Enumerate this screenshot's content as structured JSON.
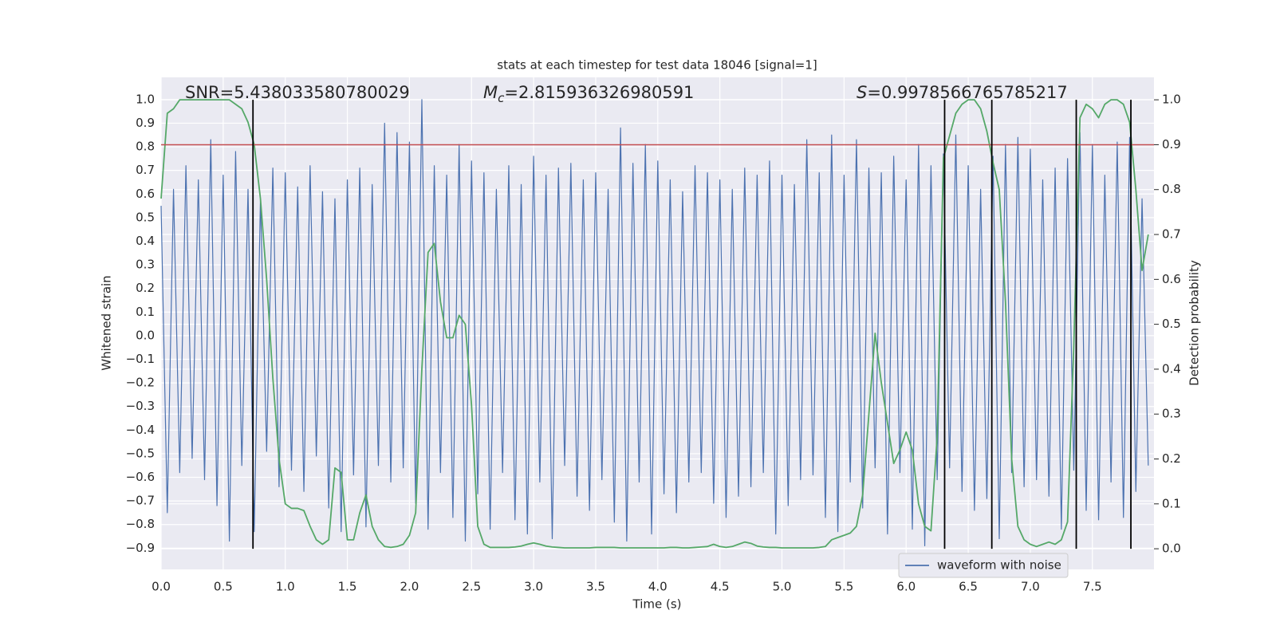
{
  "chart_data": {
    "type": "line",
    "title": "stats at each timestep for test data 18046 [signal=1]",
    "xlabel": "Time (s)",
    "ylabel": "Whitened strain",
    "y2label": "Detection probability",
    "annotations": [
      {
        "text": "SNR=5.438033580780029"
      },
      {
        "symbol": "M",
        "subscript": "c",
        "text": "=2.815936326980591"
      },
      {
        "symbol": "S",
        "text": "=0.9978566765785217"
      }
    ],
    "xlim": [
      0,
      7.996
    ],
    "xticks": [
      {
        "value": 0,
        "label": "0.0"
      },
      0.5,
      {
        "value": 1,
        "label": "1.0"
      },
      1.5,
      {
        "value": 2,
        "label": "2.0"
      },
      2.5,
      {
        "value": 3,
        "label": "3.0"
      },
      3.5,
      {
        "value": 4,
        "label": "4.0"
      },
      4.5,
      {
        "value": 5,
        "label": "5.0"
      },
      5.5,
      {
        "value": 6,
        "label": "6.0"
      },
      6.5,
      {
        "value": 7,
        "label": "7.0"
      },
      7.5
    ],
    "ylim": [
      -0.99,
      1.094
    ],
    "yticks": [
      {
        "value": -0.9,
        "label": "−0.9"
      },
      {
        "value": -0.8,
        "label": "−0.8"
      },
      {
        "value": -0.7,
        "label": "−0.7"
      },
      {
        "value": -0.6,
        "label": "−0.6"
      },
      {
        "value": -0.5,
        "label": "−0.5"
      },
      {
        "value": -0.4,
        "label": "−0.4"
      },
      {
        "value": -0.3,
        "label": "−0.3"
      },
      {
        "value": -0.2,
        "label": "−0.2"
      },
      {
        "value": -0.1,
        "label": "−0.1"
      },
      {
        "value": 0,
        "label": "0.0"
      },
      0.1,
      0.2,
      0.3,
      0.4,
      0.5,
      0.6,
      0.7,
      0.8,
      0.9,
      {
        "value": 1,
        "label": "1.0"
      }
    ],
    "y2lim": [
      -0.046,
      1.05
    ],
    "y2ticks": [
      {
        "value": 0,
        "label": "0.0"
      },
      0.1,
      0.2,
      0.3,
      0.4,
      0.5,
      0.6,
      0.7,
      0.8,
      0.9,
      {
        "value": 1,
        "label": "1.0"
      }
    ],
    "grid": true,
    "legend": "lower right",
    "x": [
      0,
      0.05,
      0.1,
      0.15,
      0.2,
      0.25,
      0.3,
      0.35,
      0.4,
      0.45,
      0.5,
      0.55,
      0.6,
      0.65,
      0.7,
      0.75,
      0.8,
      0.85,
      0.9,
      0.95,
      1,
      1.05,
      1.1,
      1.15,
      1.2,
      1.25,
      1.3,
      1.35,
      1.4,
      1.45,
      1.5,
      1.55,
      1.6,
      1.65,
      1.7,
      1.75,
      1.8,
      1.85,
      1.9,
      1.95,
      2,
      2.05,
      2.1,
      2.15,
      2.2,
      2.25,
      2.3,
      2.35,
      2.4,
      2.45,
      2.5,
      2.55,
      2.6,
      2.65,
      2.7,
      2.75,
      2.8,
      2.85,
      2.9,
      2.95,
      3,
      3.05,
      3.1,
      3.15,
      3.2,
      3.25,
      3.3,
      3.35,
      3.4,
      3.45,
      3.5,
      3.55,
      3.6,
      3.65,
      3.7,
      3.75,
      3.8,
      3.85,
      3.9,
      3.95,
      4,
      4.05,
      4.1,
      4.15,
      4.2,
      4.25,
      4.3,
      4.35,
      4.4,
      4.45,
      4.5,
      4.55,
      4.6,
      4.65,
      4.7,
      4.75,
      4.8,
      4.85,
      4.9,
      4.95,
      5,
      5.05,
      5.1,
      5.15,
      5.2,
      5.25,
      5.3,
      5.35,
      5.4,
      5.45,
      5.5,
      5.55,
      5.6,
      5.65,
      5.7,
      5.75,
      5.8,
      5.85,
      5.9,
      5.95,
      6,
      6.05,
      6.1,
      6.15,
      6.2,
      6.25,
      6.3,
      6.35,
      6.4,
      6.45,
      6.5,
      6.55,
      6.6,
      6.65,
      6.7,
      6.75,
      6.8,
      6.85,
      6.9,
      6.95,
      7,
      7.05,
      7.1,
      7.15,
      7.2,
      7.25,
      7.3,
      7.35,
      7.4,
      7.45,
      7.5,
      7.55,
      7.6,
      7.65,
      7.7,
      7.75,
      7.8,
      7.85,
      7.9,
      7.95
    ],
    "series": [
      {
        "name": "waveform with noise",
        "color": "#4c72b0",
        "values": [
          0.55,
          -0.75,
          0.62,
          -0.58,
          0.72,
          -0.52,
          0.66,
          -0.61,
          0.83,
          -0.72,
          0.68,
          -0.87,
          0.78,
          -0.55,
          0.62,
          -0.83,
          0.58,
          -0.49,
          0.71,
          -0.64,
          0.69,
          -0.57,
          0.63,
          -0.66,
          0.72,
          -0.51,
          0.61,
          -0.73,
          0.58,
          -0.83,
          0.66,
          -0.59,
          0.71,
          -0.81,
          0.64,
          -0.55,
          0.9,
          -0.62,
          0.86,
          -0.56,
          0.82,
          -0.71,
          1.0,
          -0.82,
          0.72,
          -0.58,
          0.68,
          -0.77,
          0.81,
          -0.87,
          0.74,
          -0.67,
          0.69,
          -0.82,
          0.62,
          -0.58,
          0.72,
          -0.78,
          0.64,
          -0.84,
          0.76,
          -0.62,
          0.68,
          -0.86,
          0.71,
          -0.55,
          0.73,
          -0.68,
          0.66,
          -0.74,
          0.69,
          -0.61,
          0.62,
          -0.79,
          0.88,
          -0.87,
          0.73,
          -0.62,
          0.81,
          -0.84,
          0.74,
          -0.67,
          0.66,
          -0.75,
          0.61,
          -0.62,
          0.72,
          -0.58,
          0.69,
          -0.71,
          0.66,
          -0.77,
          0.62,
          -0.68,
          0.71,
          -0.64,
          0.68,
          -0.58,
          0.74,
          -0.84,
          0.68,
          -0.72,
          0.64,
          -0.61,
          0.83,
          -0.59,
          0.69,
          -0.77,
          0.85,
          -0.83,
          0.68,
          -0.62,
          0.83,
          -0.73,
          0.71,
          -0.56,
          0.69,
          -0.84,
          0.76,
          -0.58,
          0.66,
          -0.82,
          0.81,
          -0.89,
          0.72,
          -0.61,
          0.77,
          -0.56,
          0.85,
          -0.66,
          0.72,
          -0.74,
          0.62,
          -0.69,
          0.76,
          -0.86,
          0.81,
          -0.58,
          0.84,
          -0.64,
          0.79,
          -0.61,
          0.66,
          -0.68,
          0.71,
          -0.82,
          0.75,
          -0.57,
          0.86,
          -0.74,
          0.81,
          -0.78,
          0.68,
          -0.62,
          0.82,
          -0.77,
          0.84,
          -0.66,
          0.58,
          -0.55
        ]
      },
      {
        "color": "#55a868",
        "axis": "y2",
        "values": [
          0.78,
          0.97,
          0.98,
          1.0,
          1.0,
          1.0,
          1.0,
          1.0,
          1.0,
          1.0,
          1.0,
          1.0,
          0.99,
          0.98,
          0.95,
          0.9,
          0.78,
          0.6,
          0.38,
          0.2,
          0.1,
          0.09,
          0.09,
          0.085,
          0.05,
          0.02,
          0.01,
          0.02,
          0.18,
          0.17,
          0.02,
          0.02,
          0.08,
          0.12,
          0.05,
          0.02,
          0.005,
          0.003,
          0.005,
          0.01,
          0.03,
          0.08,
          0.4,
          0.66,
          0.68,
          0.55,
          0.47,
          0.47,
          0.52,
          0.5,
          0.32,
          0.05,
          0.01,
          0.003,
          0.003,
          0.003,
          0.003,
          0.004,
          0.006,
          0.01,
          0.013,
          0.01,
          0.006,
          0.004,
          0.003,
          0.002,
          0.002,
          0.002,
          0.002,
          0.002,
          0.003,
          0.003,
          0.003,
          0.003,
          0.002,
          0.002,
          0.002,
          0.002,
          0.002,
          0.002,
          0.002,
          0.002,
          0.003,
          0.003,
          0.002,
          0.002,
          0.003,
          0.004,
          0.005,
          0.01,
          0.005,
          0.003,
          0.005,
          0.01,
          0.015,
          0.012,
          0.006,
          0.004,
          0.003,
          0.003,
          0.002,
          0.002,
          0.002,
          0.002,
          0.002,
          0.002,
          0.003,
          0.005,
          0.02,
          0.025,
          0.03,
          0.035,
          0.05,
          0.12,
          0.3,
          0.48,
          0.37,
          0.28,
          0.19,
          0.22,
          0.26,
          0.22,
          0.1,
          0.05,
          0.04,
          0.25,
          0.87,
          0.92,
          0.97,
          0.99,
          1.0,
          1.0,
          0.98,
          0.93,
          0.86,
          0.8,
          0.55,
          0.2,
          0.05,
          0.02,
          0.01,
          0.005,
          0.01,
          0.015,
          0.01,
          0.02,
          0.06,
          0.45,
          0.96,
          0.99,
          0.98,
          0.96,
          0.99,
          1.0,
          1.0,
          0.99,
          0.95,
          0.8,
          0.62,
          0.7
        ]
      }
    ],
    "hline": {
      "y": 0.9,
      "axis": "y2",
      "color": "#c44e52"
    },
    "vlines": {
      "x": [
        0.74,
        6.31,
        6.69,
        7.37,
        7.81
      ],
      "ymin": 0,
      "ymax": 1,
      "axis": "y2",
      "color": "#000000"
    }
  }
}
